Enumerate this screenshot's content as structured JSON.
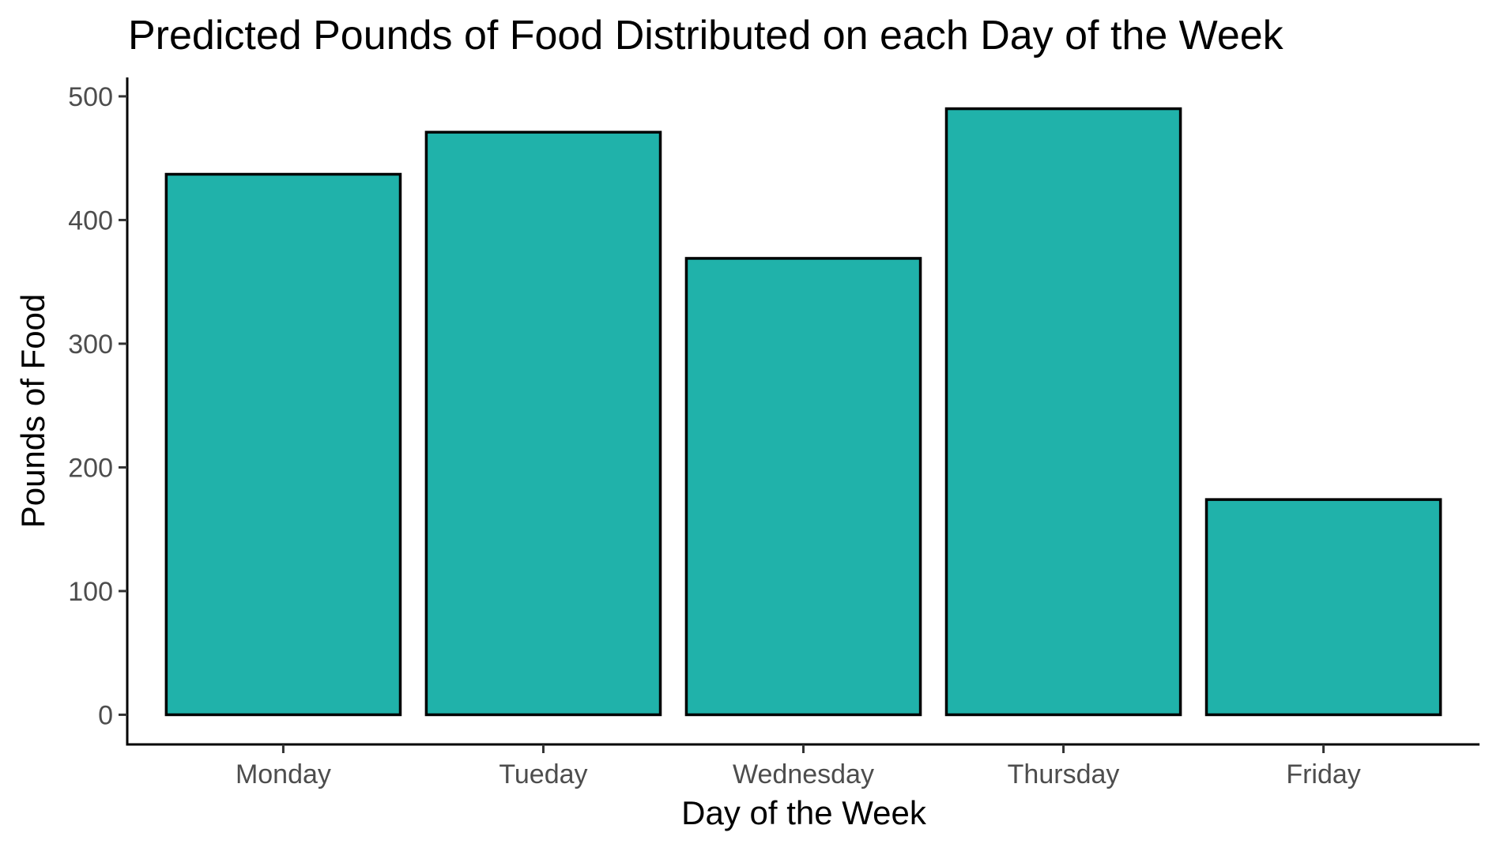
{
  "chart_data": {
    "type": "bar",
    "title": "Predicted Pounds of Food Distributed on each Day of the Week",
    "xlabel": "Day of the Week",
    "ylabel": "Pounds of Food",
    "categories": [
      "Monday",
      "Tueday",
      "Wednesday",
      "Thursday",
      "Friday"
    ],
    "values": [
      437,
      471,
      369,
      490,
      174
    ],
    "ylim": [
      -24,
      514
    ],
    "yticks": [
      0,
      100,
      200,
      300,
      400,
      500
    ],
    "grid": false,
    "legend": "none",
    "colors": {
      "bar_fill": "#20B2AA",
      "bar_stroke": "#000000"
    }
  }
}
